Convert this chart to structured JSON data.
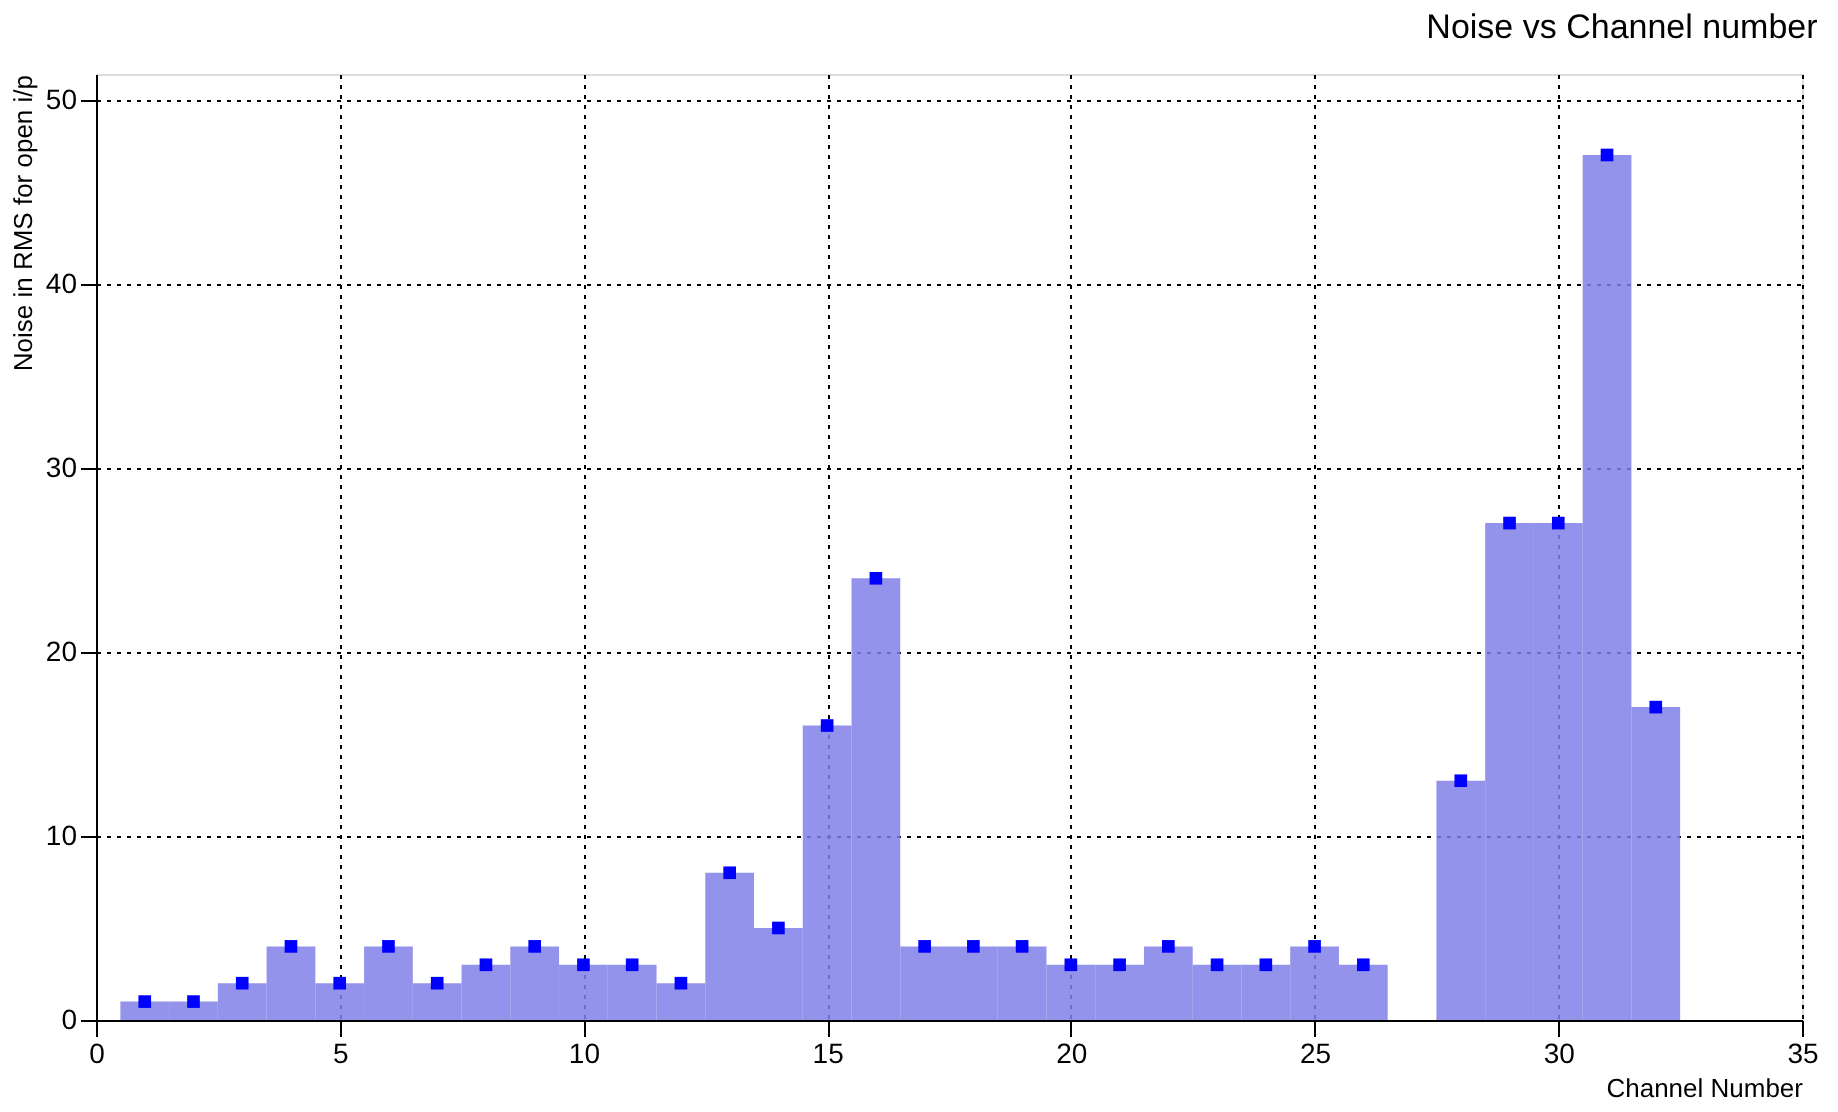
{
  "chart_data": {
    "type": "histogram",
    "title": "Noise vs Channel number",
    "xlabel": "Channel Number",
    "ylabel": "Noise in RMS for open i/p",
    "bins": [
      0.5,
      1.5,
      2.5,
      3.5,
      4.5,
      5.5,
      6.5,
      7.5,
      8.5,
      9.5,
      10.5,
      11.5,
      12.5,
      13.5,
      14.5,
      15.5,
      16.5,
      17.5,
      18.5,
      19.5,
      20.5,
      21.5,
      22.5,
      23.5,
      24.5,
      25.5,
      26.5,
      27.5,
      28.5,
      29.5,
      30.5,
      31.5,
      32.5
    ],
    "series": [
      {
        "color": "#8080e8",
        "values": [
          1,
          1,
          2,
          4,
          2,
          4,
          2,
          3,
          4,
          3,
          3,
          2,
          8,
          5,
          16,
          24,
          4,
          4,
          4,
          3,
          3,
          4,
          3,
          3,
          4,
          3,
          0,
          13,
          27,
          27,
          47,
          17
        ]
      },
      {
        "type": "scatter",
        "color": "#0000ff",
        "marker": "square",
        "x": [
          1,
          2,
          3,
          4,
          5,
          6,
          7,
          8,
          9,
          10,
          11,
          12,
          13,
          14,
          15,
          16,
          17,
          18,
          19,
          20,
          21,
          22,
          23,
          24,
          25,
          26,
          28,
          29,
          30,
          31,
          32
        ],
        "values": [
          1,
          1,
          2,
          4,
          2,
          4,
          2,
          3,
          4,
          3,
          3,
          2,
          8,
          5,
          16,
          24,
          4,
          4,
          4,
          3,
          3,
          4,
          3,
          3,
          4,
          3,
          13,
          27,
          27,
          47,
          17
        ]
      }
    ],
    "xlim": [
      0,
      35
    ],
    "xticks": [
      0,
      5,
      10,
      15,
      20,
      25,
      30,
      35
    ],
    "ylim": [
      0,
      51.4
    ],
    "yticks": [
      0,
      10,
      20,
      30,
      40,
      50
    ],
    "grid": true
  }
}
